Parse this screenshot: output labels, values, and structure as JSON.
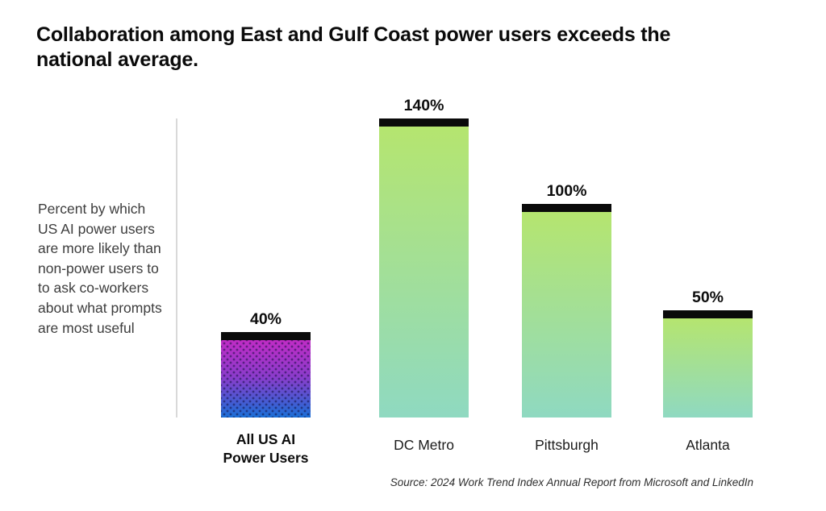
{
  "title": "Collaboration among East and Gulf Coast power users exceeds the\nnational average.",
  "axis_note": "Percent by which\nUS AI power users\nare more likely than\nnon-power users to\nto ask co-workers\nabout what prompts\nare most useful",
  "source": "Source: 2024 Work Trend Index Annual Report from Microsoft and LinkedIn",
  "chart_data": {
    "type": "bar",
    "categories": [
      "All US AI\nPower Users",
      "DC Metro",
      "Pittsburgh",
      "Atlanta"
    ],
    "values": [
      40,
      140,
      100,
      50
    ],
    "value_labels": [
      "40%",
      "140%",
      "100%",
      "50%"
    ],
    "ylim": [
      0,
      140
    ],
    "grid": false,
    "legend": false,
    "bar_styles": [
      "power",
      "green",
      "green",
      "green"
    ],
    "emphasized_category_index": 0,
    "colors": {
      "cap": "#0a0a0a",
      "green_top": "#b5e56f",
      "green_bottom": "#8fd9c1",
      "power_top": "#c02cc5",
      "power_mid": "#8a3ccb",
      "power_bottom": "#1a6fd6",
      "dot_pattern": "rgba(15,10,60,0.5)",
      "axis_line": "#d9d9d9"
    }
  }
}
